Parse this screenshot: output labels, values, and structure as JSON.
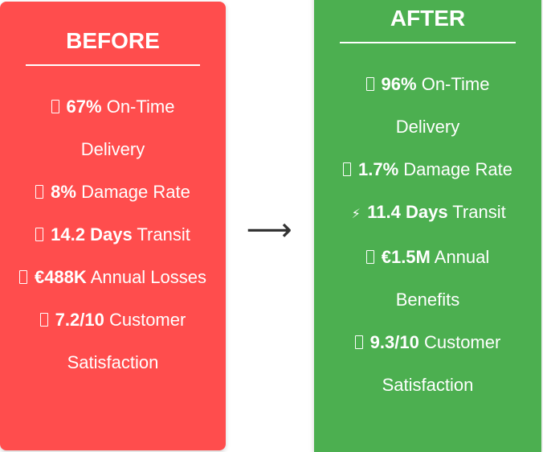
{
  "before": {
    "title": "BEFORE",
    "metrics": [
      {
        "icon": "box-icon",
        "bold": "67%",
        "text": " On-Time Delivery"
      },
      {
        "icon": "box-icon",
        "bold": "8%",
        "text": " Damage Rate"
      },
      {
        "icon": "box-icon",
        "bold": "14.2 Days",
        "text": " Transit"
      },
      {
        "icon": "box-icon",
        "bold": "€488K",
        "text": " Annual Losses"
      },
      {
        "icon": "box-icon",
        "bold": "7.2/10",
        "text": " Customer Satisfaction"
      }
    ]
  },
  "arrow": "⟶",
  "after": {
    "title": "AFTER",
    "metrics": [
      {
        "icon": "box-icon",
        "bold": "96%",
        "text": " On-Time Delivery"
      },
      {
        "icon": "box-icon",
        "bold": "1.7%",
        "text": " Damage Rate"
      },
      {
        "icon": "lightning-icon",
        "glyph": "⚡",
        "bold": "11.4 Days",
        "text": " Transit"
      },
      {
        "icon": "box-icon",
        "bold": "€1.5M",
        "text": " Annual Benefits"
      },
      {
        "icon": "box-icon",
        "bold": "9.3/10",
        "text": " Customer Satisfaction"
      }
    ]
  },
  "colors": {
    "before_bg": "#ff4d4d",
    "after_bg": "#4caf50",
    "text": "#ffffff",
    "arrow": "#333333"
  }
}
